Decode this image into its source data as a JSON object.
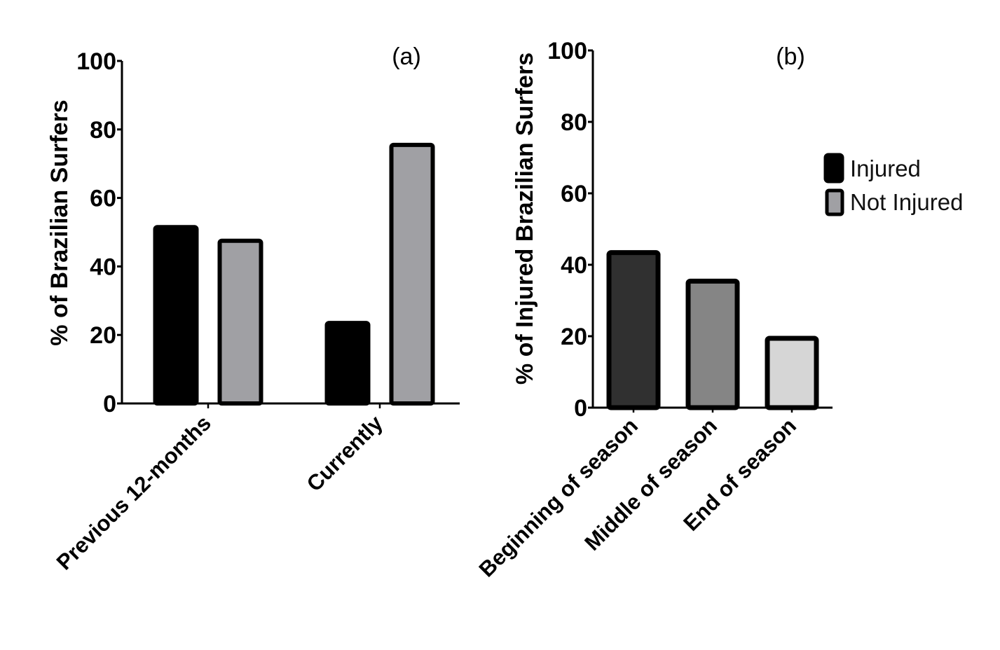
{
  "chart_data": [
    {
      "type": "bar",
      "panel_label": "(a)",
      "ylabel": "% of Brazilian Surfers",
      "xlabel": "",
      "ylim": [
        0,
        100
      ],
      "yticks": [
        0,
        20,
        40,
        60,
        80,
        100
      ],
      "categories": [
        "Previous 12-months",
        "Currently"
      ],
      "series": [
        {
          "name": "Injured",
          "values": [
            52,
            24
          ],
          "color": "#000000"
        },
        {
          "name": "Not Injured",
          "values": [
            48,
            76
          ],
          "color": "#a0a0a4"
        }
      ],
      "grid": false
    },
    {
      "type": "bar",
      "panel_label": "(b)",
      "ylabel": "% of Injured Brazilian Surfers",
      "xlabel": "",
      "ylim": [
        0,
        100
      ],
      "yticks": [
        0,
        20,
        40,
        60,
        80,
        100
      ],
      "categories": [
        "Beginning of season",
        "Middle of season",
        "End of season"
      ],
      "values": [
        44,
        36,
        20
      ],
      "colors": [
        "#303030",
        "#858585",
        "#d6d6d6"
      ],
      "grid": false
    }
  ],
  "legend": {
    "placement": "right",
    "entries": [
      {
        "label": "Injured",
        "color": "#000000"
      },
      {
        "label": "Not Injured",
        "color": "#a0a0a4"
      }
    ]
  }
}
